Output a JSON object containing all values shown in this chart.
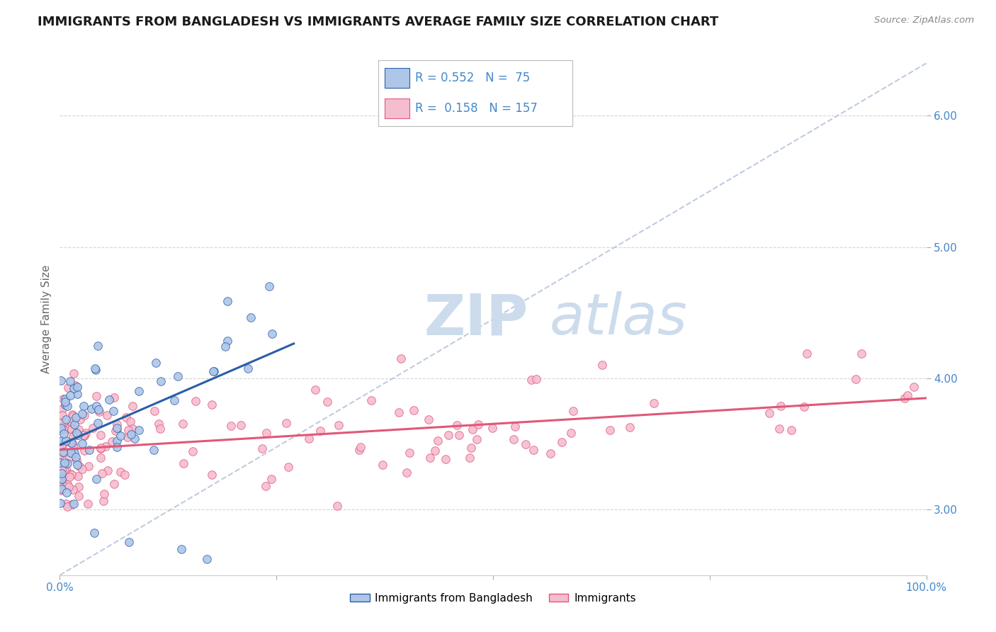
{
  "title": "IMMIGRANTS FROM BANGLADESH VS IMMIGRANTS AVERAGE FAMILY SIZE CORRELATION CHART",
  "source_text": "Source: ZipAtlas.com",
  "ylabel": "Average Family Size",
  "legend_label1": "Immigrants from Bangladesh",
  "legend_label2": "Immigrants",
  "r1": 0.552,
  "n1": 75,
  "r2": 0.158,
  "n2": 157,
  "color1": "#aec6e8",
  "color2": "#f5bdd0",
  "line_color1": "#2a5fa8",
  "line_color2": "#e05878",
  "ref_line_color": "#b0c0d8",
  "watermark_zip": "ZIP",
  "watermark_atlas": "atlas",
  "watermark_color": "#cddcec",
  "title_color": "#1a1a1a",
  "title_fontsize": 13,
  "tick_color": "#4488cc",
  "xmin": 0.0,
  "xmax": 1.0,
  "ymin": 2.5,
  "ymax": 6.4
}
